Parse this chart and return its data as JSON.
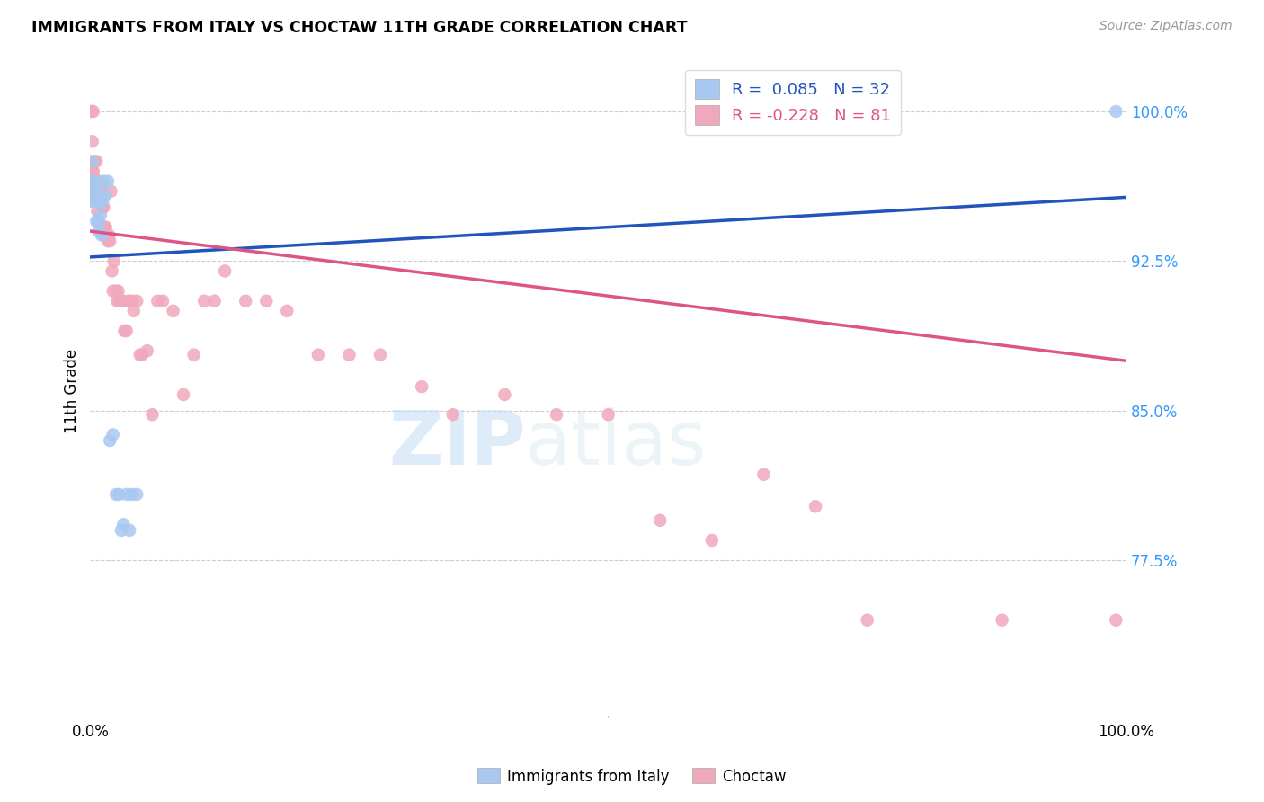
{
  "title": "IMMIGRANTS FROM ITALY VS CHOCTAW 11TH GRADE CORRELATION CHART",
  "source": "Source: ZipAtlas.com",
  "ylabel": "11th Grade",
  "ytick_labels": [
    "100.0%",
    "92.5%",
    "85.0%",
    "77.5%"
  ],
  "ytick_values": [
    1.0,
    0.925,
    0.85,
    0.775
  ],
  "x_min": 0.0,
  "x_max": 1.0,
  "y_min": 0.695,
  "y_max": 1.025,
  "blue_R": 0.085,
  "blue_N": 32,
  "pink_R": -0.228,
  "pink_N": 81,
  "blue_color": "#a8c8f0",
  "pink_color": "#f0a8bc",
  "blue_line_color": "#2255bb",
  "pink_line_color": "#dd5588",
  "legend_label_blue": "Immigrants from Italy",
  "legend_label_pink": "Choctaw",
  "watermark_zip": "ZIP",
  "watermark_atlas": "atlas",
  "blue_scatter_x": [
    0.001,
    0.002,
    0.002,
    0.003,
    0.003,
    0.004,
    0.004,
    0.005,
    0.005,
    0.006,
    0.006,
    0.007,
    0.008,
    0.008,
    0.009,
    0.01,
    0.011,
    0.012,
    0.013,
    0.015,
    0.017,
    0.019,
    0.022,
    0.025,
    0.028,
    0.03,
    0.032,
    0.035,
    0.038,
    0.04,
    0.045,
    0.99
  ],
  "blue_scatter_y": [
    0.955,
    0.96,
    0.975,
    0.96,
    0.965,
    0.96,
    0.965,
    0.955,
    0.96,
    0.945,
    0.955,
    0.955,
    0.945,
    0.94,
    0.955,
    0.948,
    0.938,
    0.955,
    0.965,
    0.958,
    0.965,
    0.835,
    0.838,
    0.808,
    0.808,
    0.79,
    0.793,
    0.808,
    0.79,
    0.808,
    0.808,
    1.0
  ],
  "pink_scatter_x": [
    0.001,
    0.001,
    0.002,
    0.002,
    0.003,
    0.003,
    0.004,
    0.004,
    0.005,
    0.005,
    0.005,
    0.006,
    0.006,
    0.007,
    0.007,
    0.008,
    0.008,
    0.008,
    0.009,
    0.009,
    0.01,
    0.01,
    0.011,
    0.012,
    0.012,
    0.013,
    0.013,
    0.014,
    0.014,
    0.015,
    0.015,
    0.016,
    0.017,
    0.018,
    0.019,
    0.02,
    0.021,
    0.022,
    0.023,
    0.025,
    0.026,
    0.027,
    0.028,
    0.03,
    0.032,
    0.033,
    0.035,
    0.037,
    0.04,
    0.042,
    0.045,
    0.048,
    0.05,
    0.055,
    0.06,
    0.065,
    0.07,
    0.08,
    0.09,
    0.1,
    0.11,
    0.12,
    0.13,
    0.15,
    0.17,
    0.19,
    0.22,
    0.25,
    0.28,
    0.32,
    0.35,
    0.4,
    0.45,
    0.5,
    0.55,
    0.6,
    0.65,
    0.7,
    0.75,
    0.88,
    0.99
  ],
  "pink_scatter_y": [
    0.965,
    1.0,
    0.97,
    0.985,
    0.97,
    1.0,
    0.96,
    0.975,
    0.955,
    0.958,
    0.965,
    0.975,
    0.955,
    0.965,
    0.95,
    0.965,
    0.96,
    0.955,
    0.958,
    0.955,
    0.963,
    0.96,
    0.942,
    0.952,
    0.942,
    0.952,
    0.94,
    0.938,
    0.942,
    0.942,
    0.938,
    0.938,
    0.935,
    0.938,
    0.935,
    0.96,
    0.92,
    0.91,
    0.925,
    0.91,
    0.905,
    0.91,
    0.905,
    0.905,
    0.905,
    0.89,
    0.89,
    0.905,
    0.905,
    0.9,
    0.905,
    0.878,
    0.878,
    0.88,
    0.848,
    0.905,
    0.905,
    0.9,
    0.858,
    0.878,
    0.905,
    0.905,
    0.92,
    0.905,
    0.905,
    0.9,
    0.878,
    0.878,
    0.878,
    0.862,
    0.848,
    0.858,
    0.848,
    0.848,
    0.795,
    0.785,
    0.818,
    0.802,
    0.745,
    0.745,
    0.745
  ],
  "blue_line_x0": 0.0,
  "blue_line_y0": 0.927,
  "blue_line_x1": 1.0,
  "blue_line_y1": 0.957,
  "pink_line_x0": 0.0,
  "pink_line_y0": 0.94,
  "pink_line_x1": 1.0,
  "pink_line_y1": 0.875
}
